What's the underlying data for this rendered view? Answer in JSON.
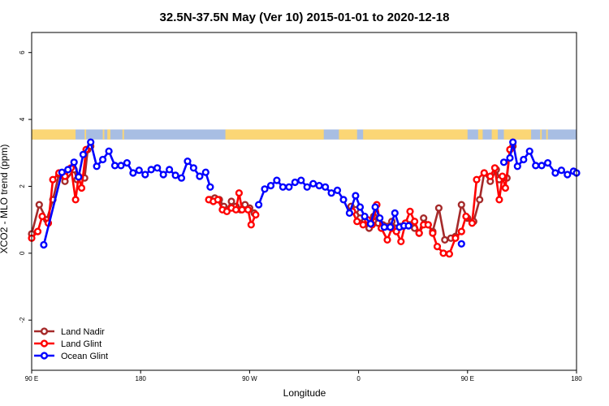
{
  "chart_data": {
    "type": "line",
    "title": "32.5N-37.5N May (Ver 10)   2015-01-01 to 2020-12-18",
    "xlabel": "Longitude",
    "ylabel": "XCO2 - MLO trend (ppm)",
    "xlim": [
      -90,
      270
    ],
    "ylim": [
      -3.5,
      6.6
    ],
    "x_ticks": [
      {
        "value": -90,
        "label": "90 E"
      },
      {
        "value": -18,
        "label": "180"
      },
      {
        "value": 54,
        "label": "90 W"
      },
      {
        "value": 126,
        "label": "0"
      },
      {
        "value": 198,
        "label": "90 E"
      },
      {
        "value": 270,
        "label": "180"
      }
    ],
    "y_ticks": [
      {
        "value": -2,
        "label": "-2"
      },
      {
        "value": 0,
        "label": "0"
      },
      {
        "value": 2,
        "label": "2"
      },
      {
        "value": 4,
        "label": "4"
      },
      {
        "value": 6,
        "label": "6"
      }
    ],
    "grid": false,
    "legend_position": "bottom-left",
    "land_ocean_band": {
      "y_range": [
        3.4,
        3.7
      ],
      "land_color": "#FBD675",
      "ocean_color": "#A8BEE3",
      "land_segments": [
        [
          -90,
          -61
        ],
        [
          -55,
          -54
        ],
        [
          -43,
          -42
        ],
        [
          -40,
          -38
        ],
        [
          -30,
          -29
        ],
        [
          38,
          103
        ],
        [
          113,
          125
        ],
        [
          129,
          198
        ],
        [
          205,
          208
        ],
        [
          214,
          218
        ],
        [
          222,
          240
        ],
        [
          246,
          247
        ],
        [
          250,
          251
        ]
      ]
    },
    "series": [
      {
        "name": "Land Nadir",
        "color": "#A52A2A",
        "points": [
          [
            -90,
            0.58
          ],
          [
            -85,
            1.45
          ],
          [
            -80,
            1.0
          ],
          [
            -76,
            1.6
          ],
          [
            -72,
            2.35
          ],
          [
            -68,
            2.15
          ],
          [
            -62,
            2.5
          ],
          [
            -60,
            2.2
          ],
          [
            -55,
            2.25
          ],
          [
            -53,
            3.1
          ],
          [
            -51,
            3.2
          ],
          null,
          [
            28,
            1.6
          ],
          [
            31,
            1.65
          ],
          [
            34,
            1.6
          ],
          [
            37,
            1.4
          ],
          [
            39,
            1.3
          ],
          [
            42,
            1.55
          ],
          [
            45,
            1.4
          ],
          [
            48,
            1.3
          ],
          [
            51,
            1.45
          ],
          [
            54,
            1.35
          ],
          [
            57,
            1.2
          ],
          null,
          [
            121,
            1.4
          ],
          [
            124,
            1.3
          ],
          [
            127,
            1.05
          ],
          [
            130,
            0.95
          ],
          [
            133,
            0.75
          ],
          [
            136,
            1.1
          ],
          [
            139,
            0.9
          ],
          [
            142,
            0.85
          ],
          [
            145,
            0.8
          ],
          [
            148,
            0.95
          ],
          [
            151,
            0.75
          ],
          [
            154,
            0.8
          ],
          [
            157,
            0.9
          ],
          [
            160,
            0.85
          ],
          [
            163,
            0.75
          ],
          [
            166,
            0.6
          ],
          [
            169,
            1.05
          ],
          [
            172,
            0.85
          ],
          [
            175,
            0.65
          ],
          [
            179,
            1.35
          ],
          [
            183,
            0.4
          ],
          [
            187,
            0.45
          ],
          [
            190,
            0.5
          ],
          [
            194,
            1.45
          ],
          [
            198,
            1.05
          ],
          [
            202,
            0.95
          ],
          [
            206,
            1.6
          ],
          [
            209,
            2.4
          ],
          [
            213,
            2.15
          ],
          [
            217,
            2.5
          ],
          [
            219,
            2.2
          ],
          [
            224,
            2.25
          ],
          [
            226,
            3.1
          ],
          [
            228,
            3.2
          ]
        ]
      },
      {
        "name": "Land Glint",
        "color": "#FF0000",
        "points": [
          [
            -90,
            0.45
          ],
          [
            -86,
            0.65
          ],
          [
            -83,
            1.1
          ],
          [
            -79,
            0.9
          ],
          [
            -76,
            2.2
          ],
          [
            -72,
            2.4
          ],
          [
            -68,
            2.3
          ],
          [
            -64,
            2.55
          ],
          [
            -61,
            1.6
          ],
          [
            -59,
            2.3
          ],
          [
            -57,
            1.95
          ],
          [
            -54,
            3.1
          ],
          null,
          [
            27,
            1.6
          ],
          [
            30,
            1.55
          ],
          [
            33,
            1.6
          ],
          [
            36,
            1.3
          ],
          [
            39,
            1.25
          ],
          [
            42,
            1.35
          ],
          [
            45,
            1.3
          ],
          [
            47,
            1.8
          ],
          [
            49,
            1.3
          ],
          [
            53,
            1.3
          ],
          [
            55,
            0.85
          ],
          [
            58,
            1.15
          ],
          null,
          [
            122,
            1.25
          ],
          [
            125,
            0.95
          ],
          [
            129,
            0.85
          ],
          [
            132,
            1.0
          ],
          [
            135,
            0.85
          ],
          [
            138,
            1.45
          ],
          [
            141,
            0.75
          ],
          [
            145,
            0.4
          ],
          [
            148,
            0.75
          ],
          [
            151,
            0.65
          ],
          [
            154,
            0.35
          ],
          [
            157,
            0.9
          ],
          [
            160,
            1.25
          ],
          [
            163,
            0.95
          ],
          [
            166,
            0.6
          ],
          [
            169,
            0.85
          ],
          [
            172,
            0.85
          ],
          [
            175,
            0.6
          ],
          [
            178,
            0.2
          ],
          [
            182,
            0.0
          ],
          [
            186,
            -0.02
          ],
          [
            190,
            0.45
          ],
          [
            194,
            0.65
          ],
          [
            197,
            1.1
          ],
          [
            201,
            0.9
          ],
          [
            204,
            2.2
          ],
          [
            209,
            2.4
          ],
          [
            213,
            2.3
          ],
          [
            216,
            2.55
          ],
          [
            219,
            1.6
          ],
          [
            221,
            2.3
          ],
          [
            223,
            1.95
          ],
          [
            226,
            3.1
          ]
        ]
      },
      {
        "name": "Ocean Glint",
        "color": "#0000FF",
        "points": [
          [
            -82,
            0.25
          ],
          [
            -70,
            2.42
          ],
          [
            -66,
            2.5
          ],
          [
            -62,
            2.72
          ],
          [
            -59,
            2.28
          ],
          [
            -56,
            2.95
          ],
          [
            -51,
            3.32
          ],
          [
            -47,
            2.6
          ],
          [
            -43,
            2.8
          ],
          [
            -39,
            3.05
          ],
          [
            -35,
            2.62
          ],
          [
            -31,
            2.62
          ],
          [
            -27,
            2.7
          ],
          [
            -23,
            2.4
          ],
          [
            -19,
            2.48
          ],
          [
            -15,
            2.35
          ],
          [
            -11,
            2.5
          ],
          [
            -7,
            2.55
          ],
          [
            -3,
            2.35
          ],
          [
            1,
            2.5
          ],
          [
            5,
            2.33
          ],
          [
            9,
            2.25
          ],
          [
            13,
            2.75
          ],
          [
            17,
            2.55
          ],
          [
            21,
            2.3
          ],
          [
            25,
            2.42
          ],
          [
            28,
            1.98
          ],
          null,
          [
            60,
            1.45
          ],
          [
            64,
            1.92
          ],
          [
            68,
            2.02
          ],
          [
            72,
            2.18
          ],
          [
            76,
            1.98
          ],
          [
            80,
            1.98
          ],
          [
            84,
            2.12
          ],
          [
            88,
            2.18
          ],
          [
            92,
            1.98
          ],
          [
            96,
            2.08
          ],
          [
            100,
            2.02
          ],
          [
            104,
            1.98
          ],
          [
            108,
            1.8
          ],
          [
            112,
            1.88
          ],
          [
            116,
            1.6
          ],
          [
            120,
            1.2
          ],
          [
            124,
            1.72
          ],
          [
            127,
            1.38
          ],
          [
            130,
            1.1
          ],
          [
            134,
            0.88
          ],
          [
            137,
            1.38
          ],
          [
            140,
            1.05
          ],
          [
            143,
            0.78
          ],
          [
            147,
            0.78
          ],
          [
            150,
            1.2
          ],
          [
            153,
            0.78
          ],
          [
            156,
            0.82
          ],
          [
            159,
            0.82
          ],
          null,
          [
            194,
            0.28
          ],
          null,
          [
            222,
            2.72
          ],
          [
            226,
            2.85
          ],
          [
            228,
            3.32
          ],
          [
            231,
            2.6
          ],
          [
            235,
            2.8
          ],
          [
            239,
            3.05
          ],
          [
            243,
            2.62
          ],
          [
            247,
            2.62
          ],
          [
            251,
            2.7
          ],
          [
            256,
            2.4
          ],
          [
            260,
            2.48
          ],
          [
            264,
            2.35
          ],
          [
            268,
            2.45
          ],
          [
            270,
            2.4
          ]
        ]
      }
    ]
  }
}
